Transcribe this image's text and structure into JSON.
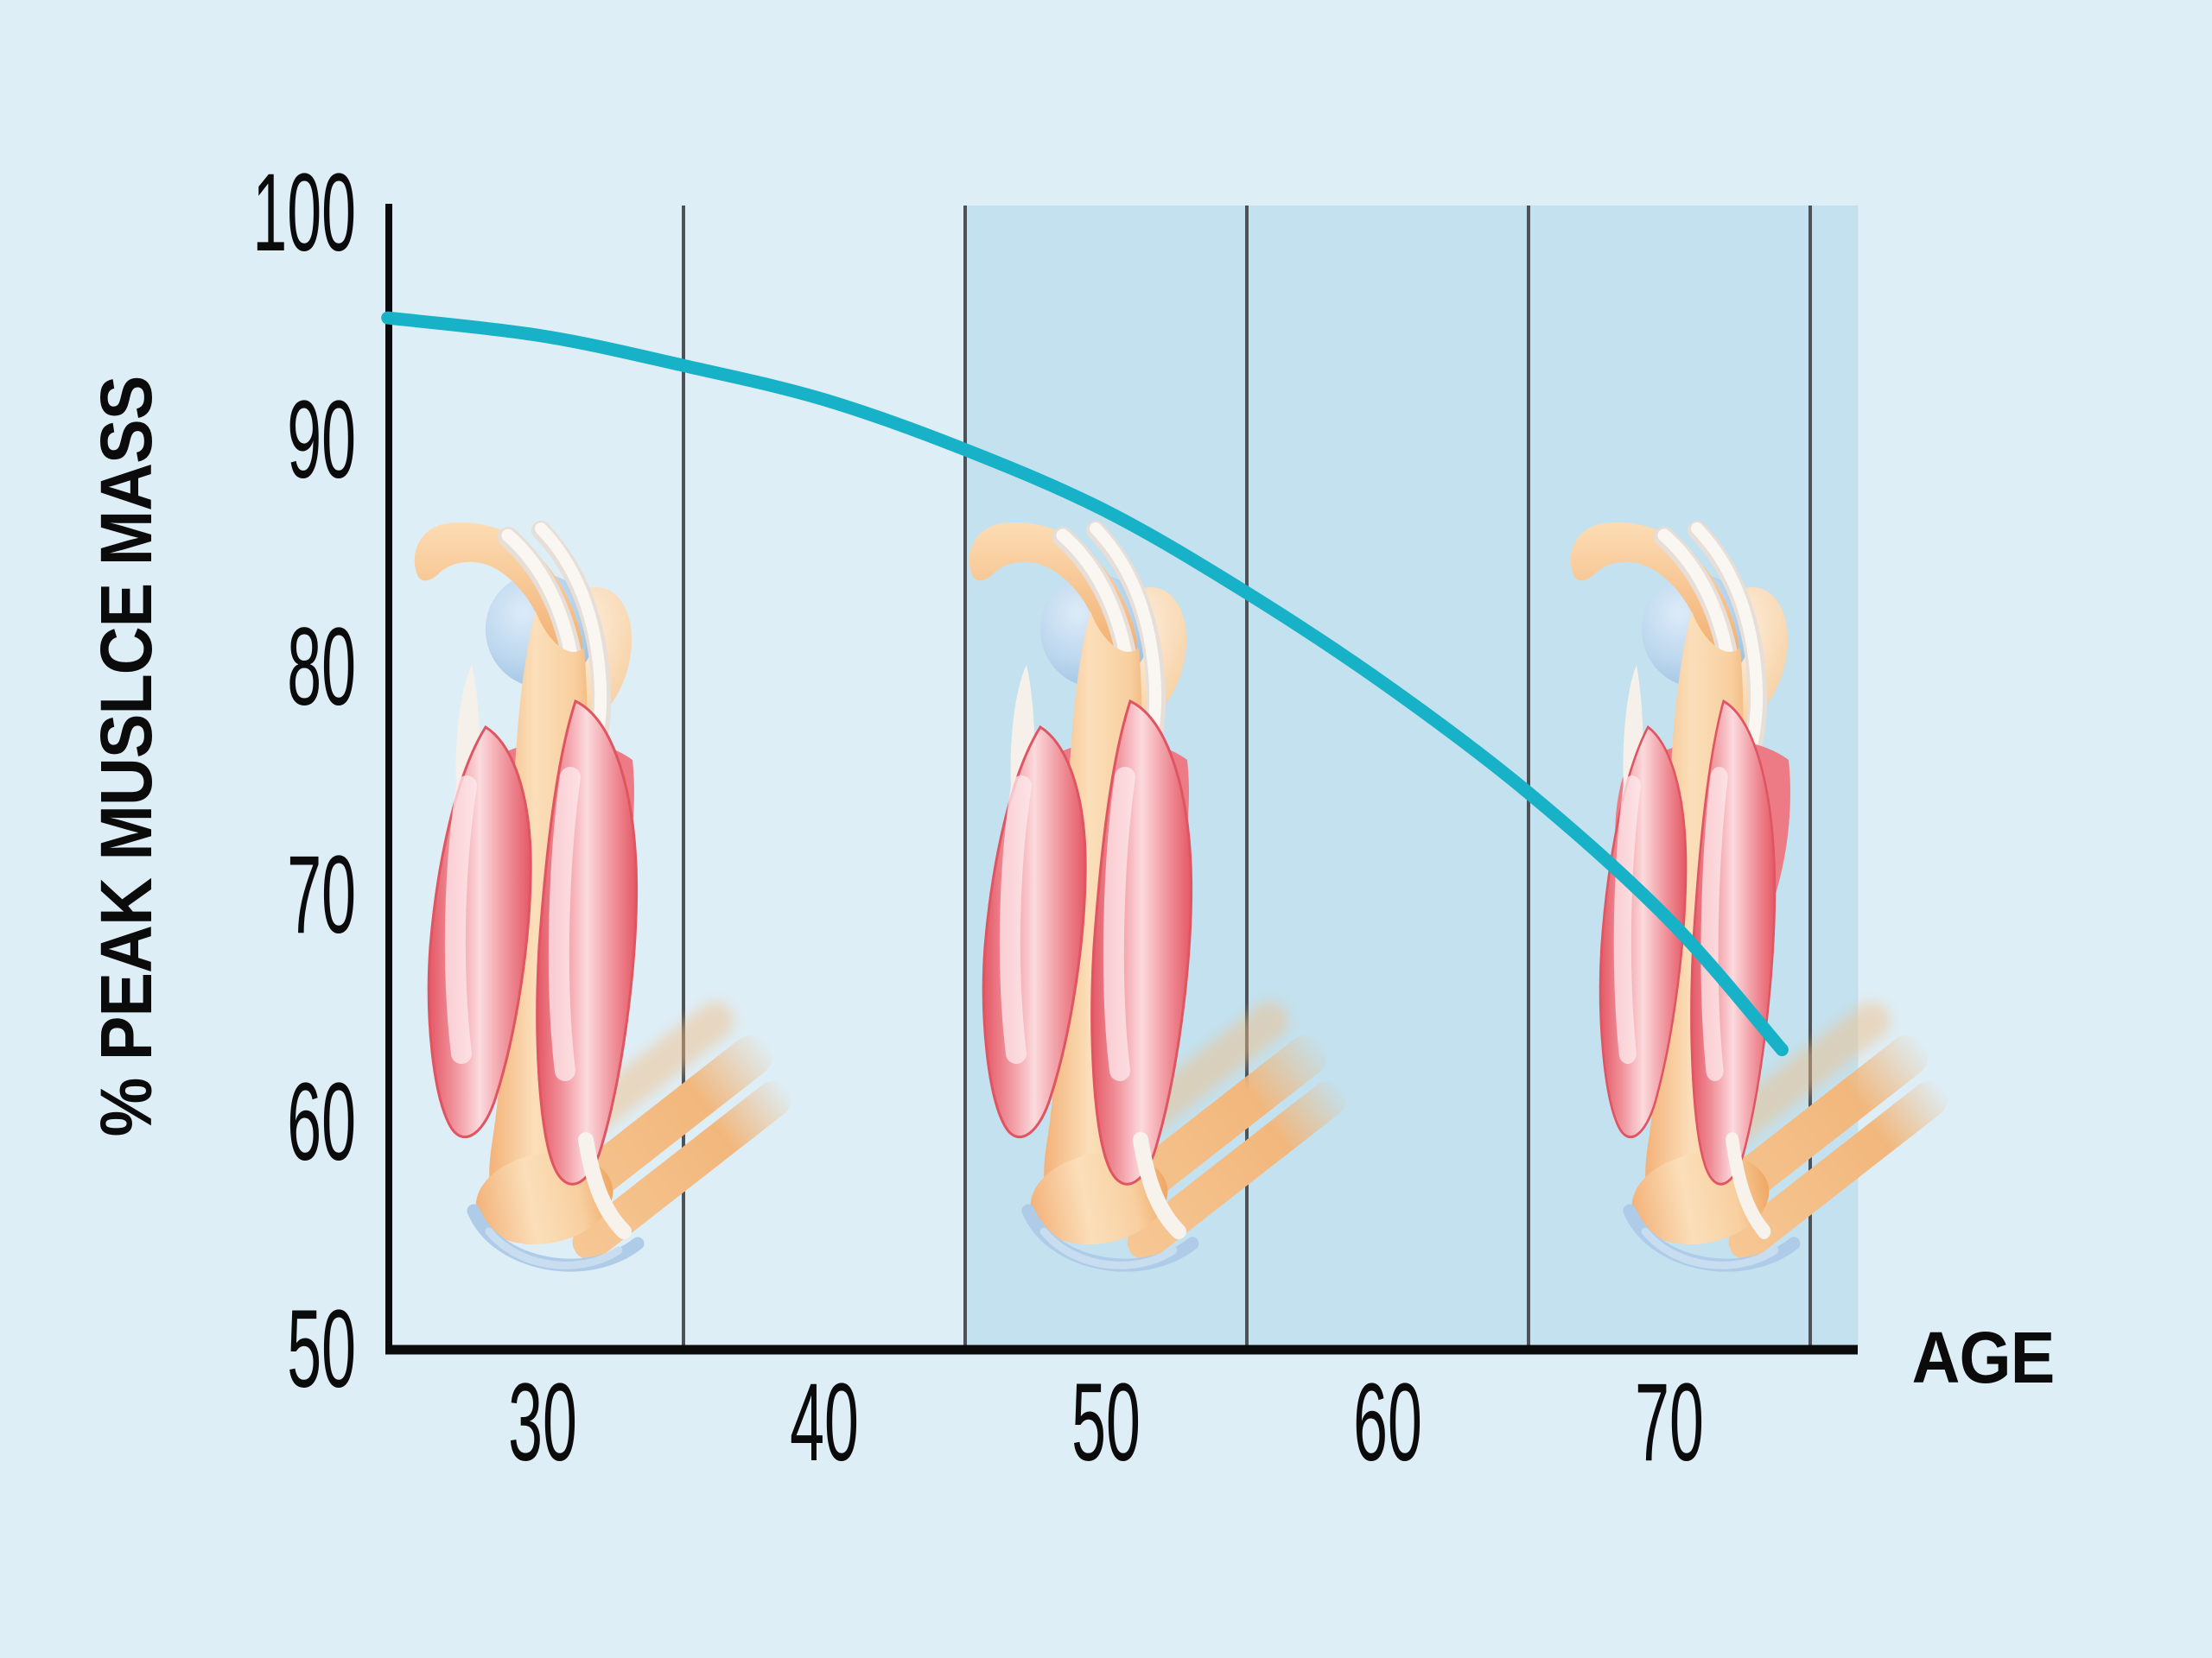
{
  "chart_data": {
    "type": "line",
    "xlabel": "AGE",
    "ylabel": "% PEAK MUSLCE MASS",
    "x_tick_values": [
      30,
      40,
      50,
      60,
      70
    ],
    "y_tick_values": [
      100,
      90,
      80,
      70,
      60,
      50
    ],
    "xlim": [
      24.5,
      76.7
    ],
    "ylim": [
      50,
      100
    ],
    "grid_on": true,
    "grid_x_values": [
      35,
      45,
      55,
      65,
      75
    ],
    "shaded_band": {
      "x_start": 45,
      "x_end": 76.7
    },
    "legend": "none",
    "series": [
      {
        "name": "percent-peak-muscle-mass",
        "color": "#17b2c7",
        "points": [
          [
            24.5,
            95.4
          ],
          [
            30,
            94.6
          ],
          [
            35,
            93.3
          ],
          [
            40,
            91.8
          ],
          [
            45,
            89.6
          ],
          [
            50,
            86.9
          ],
          [
            55,
            83.3
          ],
          [
            60,
            79.2
          ],
          [
            65,
            74.5
          ],
          [
            70,
            68.9
          ],
          [
            74,
            63.2
          ]
        ]
      }
    ]
  },
  "illustrations": [
    {
      "label": "arm muscle anatomy near age 30"
    },
    {
      "label": "arm muscle anatomy near age 50"
    },
    {
      "label": "arm muscle anatomy near age 70, reduced muscle mass"
    }
  ],
  "colors": {
    "bg": "#deeef6",
    "band": "#c3e1ee",
    "grid": "#4d5257",
    "axis": "#0b0b0c",
    "curve": "#17b2c7",
    "text": "#0b0b0c"
  }
}
